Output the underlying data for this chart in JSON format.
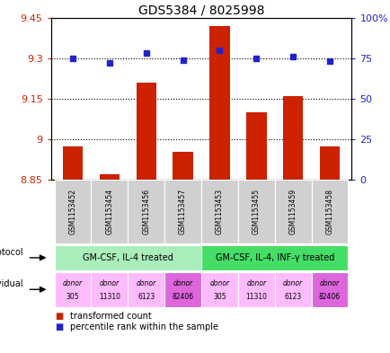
{
  "title": "GDS5384 / 8025998",
  "samples": [
    "GSM1153452",
    "GSM1153454",
    "GSM1153456",
    "GSM1153457",
    "GSM1153453",
    "GSM1153455",
    "GSM1153459",
    "GSM1153458"
  ],
  "bar_values": [
    8.975,
    8.872,
    9.21,
    8.955,
    9.42,
    9.1,
    9.16,
    8.975
  ],
  "percentile_values": [
    75,
    72,
    78,
    74,
    80,
    75,
    76,
    73
  ],
  "bar_bottom": 8.85,
  "ylim_left": [
    8.85,
    9.45
  ],
  "ylim_right": [
    0,
    100
  ],
  "yticks_left": [
    8.85,
    9.0,
    9.15,
    9.3,
    9.45
  ],
  "yticks_right": [
    0,
    25,
    50,
    75,
    100
  ],
  "ytick_labels_left": [
    "8.85",
    "9",
    "9.15",
    "9.3",
    "9.45"
  ],
  "ytick_labels_right": [
    "0",
    "25",
    "50",
    "75",
    "100%"
  ],
  "hlines": [
    9.0,
    9.15,
    9.3
  ],
  "bar_color": "#cc2200",
  "dot_color": "#2222cc",
  "protocol_groups": [
    {
      "label": "GM-CSF, IL-4 treated",
      "start": 0,
      "end": 4,
      "color": "#aaeebb"
    },
    {
      "label": "GM-CSF, IL-4, INF-γ treated",
      "start": 4,
      "end": 8,
      "color": "#44dd66"
    }
  ],
  "individuals": [
    {
      "label": "donor\n305",
      "idx": 0,
      "color": "#ffbbff"
    },
    {
      "label": "donor\n11310",
      "idx": 1,
      "color": "#ffbbff"
    },
    {
      "label": "donor\n6123",
      "idx": 2,
      "color": "#ffbbff"
    },
    {
      "label": "donor\n82406",
      "idx": 3,
      "color": "#dd66dd"
    },
    {
      "label": "donor\n305",
      "idx": 4,
      "color": "#ffbbff"
    },
    {
      "label": "donor\n11310",
      "idx": 5,
      "color": "#ffbbff"
    },
    {
      "label": "donor\n6123",
      "idx": 6,
      "color": "#ffbbff"
    },
    {
      "label": "donor\n82406",
      "idx": 7,
      "color": "#dd66dd"
    }
  ],
  "sample_bg_color": "#d0d0d0",
  "left_label_color": "#cc2200",
  "right_label_color": "#2222cc",
  "n_samples": 8
}
